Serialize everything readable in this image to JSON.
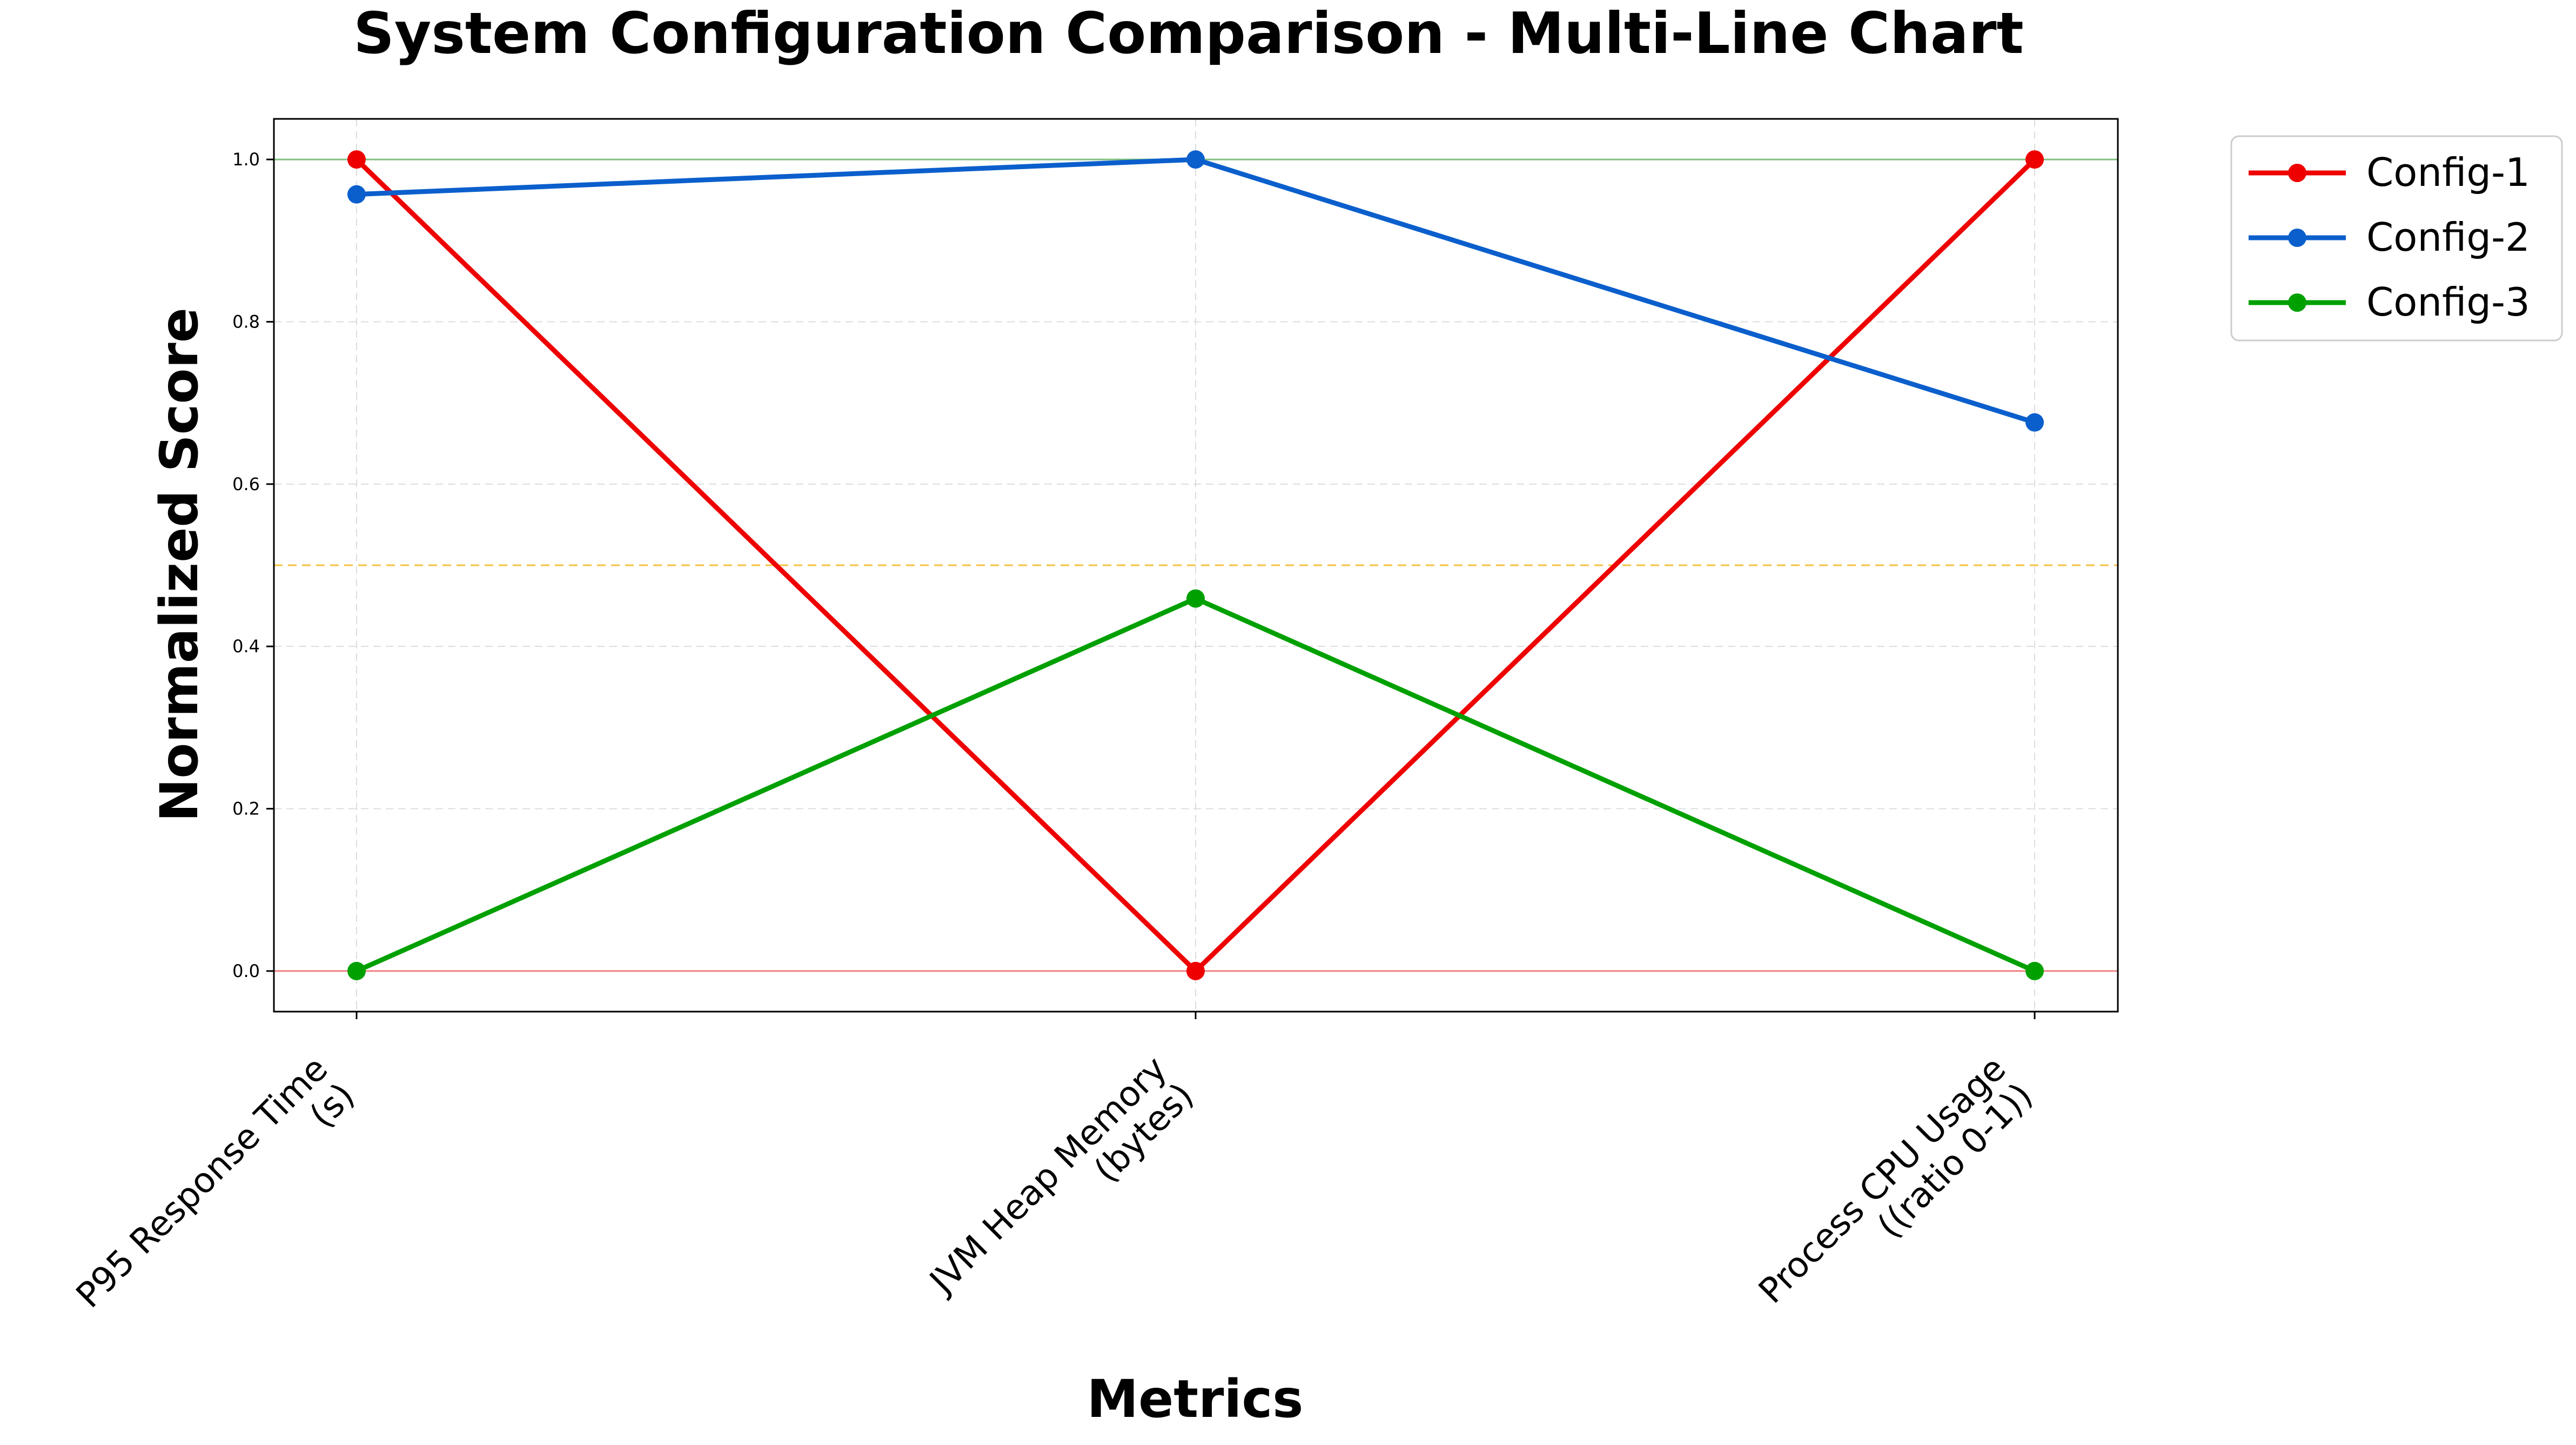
{
  "chart_data": {
    "type": "line",
    "title": "System Configuration Comparison - Multi-Line Chart",
    "xlabel": "Metrics",
    "ylabel": "Normalized Score",
    "categories": [
      [
        "P95 Response Time",
        "(s)"
      ],
      [
        "JVM Heap Memory",
        "(bytes)"
      ],
      [
        "Process CPU Usage",
        "((ratio 0-1))"
      ]
    ],
    "ylim": [
      -0.05,
      1.05
    ],
    "yticks": [
      0.0,
      0.2,
      0.4,
      0.6,
      0.8,
      1.0
    ],
    "ytick_labels": [
      "0.0",
      "0.2",
      "0.4",
      "0.6",
      "0.8",
      "1.0"
    ],
    "grid": true,
    "reference_lines": [
      {
        "y": 1.0,
        "color": "#7fbf7f"
      },
      {
        "y": 0.5,
        "color": "#f5c242"
      },
      {
        "y": 0.0,
        "color": "#f08080"
      }
    ],
    "series": [
      {
        "name": "Config-1",
        "color": "#ee0000",
        "values": [
          1.0,
          0.0,
          1.0
        ]
      },
      {
        "name": "Config-2",
        "color": "#0b5fcc",
        "values": [
          0.957,
          1.0,
          0.676
        ]
      },
      {
        "name": "Config-3",
        "color": "#00a000",
        "values": [
          0.0,
          0.459,
          0.0
        ]
      }
    ],
    "legend": {
      "placement": "outside-top-right"
    }
  }
}
